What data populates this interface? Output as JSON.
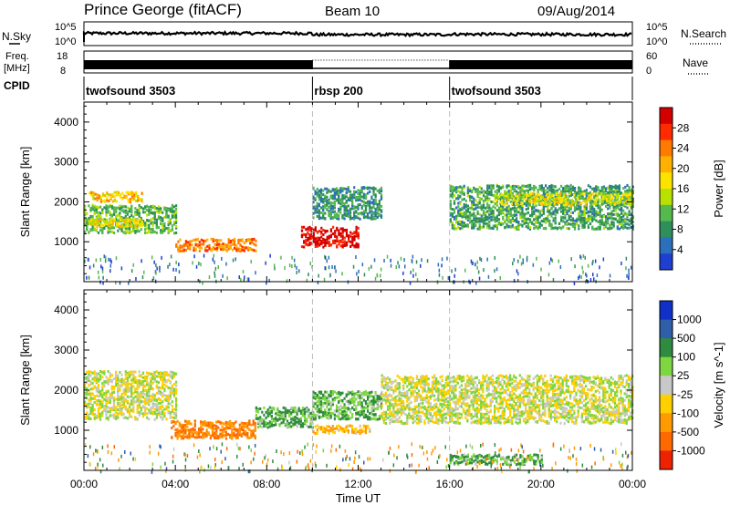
{
  "header": {
    "station": "Prince George (fitACF)",
    "beam": "Beam 10",
    "date": "09/Aug/2014"
  },
  "panel_labels": {
    "nsky": "N.Sky",
    "nsearch": "N.Search",
    "freq": "Freq.",
    "freq_unit": "[MHz]",
    "nave": "Nave",
    "cpid": "CPID"
  },
  "top_axes": {
    "nsky_ticks": [
      "10^5",
      "10^0"
    ],
    "nsearch_ticks": [
      "10^5",
      "10^0"
    ],
    "freq_ticks": [
      "18",
      "8"
    ],
    "nave_ticks": [
      "60",
      "0"
    ]
  },
  "cpid_segments": [
    {
      "label": "twofsound 3503",
      "start_hour": 0,
      "end_hour": 10
    },
    {
      "label": "rbsp 200",
      "start_hour": 10,
      "end_hour": 16
    },
    {
      "label": "twofsound 3503",
      "start_hour": 16,
      "end_hour": 24
    }
  ],
  "power_colorbar": {
    "label": "Power [dB]",
    "ticks": [
      "28",
      "24",
      "20",
      "16",
      "12",
      "8",
      "4"
    ],
    "colors": [
      "#d40000",
      "#ff2a00",
      "#ff7a00",
      "#ffb000",
      "#ffe300",
      "#b8e000",
      "#56b94e",
      "#2f8f5a",
      "#2c6fbd",
      "#1e3fd0"
    ]
  },
  "velocity_colorbar": {
    "label": "Velocity [m s^-1]",
    "ticks": [
      "1000",
      "500",
      "100",
      "25",
      "-25",
      "-100",
      "-500",
      "-1000"
    ],
    "colors": [
      "#1030c8",
      "#2f5fa8",
      "#2e8b3f",
      "#7ed640",
      "#c8c8c8",
      "#ffd000",
      "#ff9a00",
      "#ff6a00",
      "#ee2200"
    ]
  },
  "chart_data": [
    {
      "type": "heatmap",
      "name": "Power",
      "xlabel": "",
      "ylabel": "Slant Range [km]",
      "xlim": [
        0,
        24
      ],
      "ylim": [
        0,
        4500
      ],
      "yticks": [
        1000,
        2000,
        3000,
        4000
      ],
      "zlabel": "Power [dB]",
      "zlim": [
        0,
        30
      ],
      "bands": [
        {
          "t_start": 0,
          "t_end": 4,
          "range_center": 1600,
          "range_width": 700,
          "value": 10
        },
        {
          "t_start": 0.2,
          "t_end": 2.5,
          "range_center": 2150,
          "range_width": 250,
          "value": 18
        },
        {
          "t_start": 0.2,
          "t_end": 2.5,
          "range_center": 1500,
          "range_width": 200,
          "value": 16
        },
        {
          "t_start": 4,
          "t_end": 7.5,
          "range_center": 950,
          "range_width": 300,
          "value": 22
        },
        {
          "t_start": 9.5,
          "t_end": 12,
          "range_center": 1150,
          "range_width": 500,
          "value": 28
        },
        {
          "t_start": 10,
          "t_end": 13,
          "range_center": 2000,
          "range_width": 800,
          "value": 8
        },
        {
          "t_start": 16,
          "t_end": 24,
          "range_center": 1900,
          "range_width": 1100,
          "value": 9
        },
        {
          "t_start": 18,
          "t_end": 24,
          "range_center": 2100,
          "range_width": 300,
          "value": 15
        }
      ]
    },
    {
      "type": "heatmap",
      "name": "Velocity",
      "xlabel": "Time UT",
      "ylabel": "Slant Range [km]",
      "xlim": [
        0,
        24
      ],
      "ylim": [
        0,
        4500
      ],
      "xticks": [
        "00:00",
        "04:00",
        "08:00",
        "12:00",
        "16:00",
        "20:00",
        "00:00"
      ],
      "yticks": [
        1000,
        2000,
        3000,
        4000
      ],
      "zlabel": "Velocity [m s^-1]",
      "zlim": [
        -1000,
        1000
      ],
      "bands": [
        {
          "t_start": 0,
          "t_end": 4,
          "range_center": 1900,
          "range_width": 1200,
          "value": 0
        },
        {
          "t_start": 3.8,
          "t_end": 7.5,
          "range_center": 1050,
          "range_width": 450,
          "value": -500
        },
        {
          "t_start": 7.5,
          "t_end": 10,
          "range_center": 1350,
          "range_width": 500,
          "value": 100
        },
        {
          "t_start": 10,
          "t_end": 13,
          "range_center": 1650,
          "range_width": 700,
          "value": 100
        },
        {
          "t_start": 10,
          "t_end": 12.5,
          "range_center": 1050,
          "range_width": 200,
          "value": -100
        },
        {
          "t_start": 13,
          "t_end": 24,
          "range_center": 1800,
          "range_width": 1200,
          "value": 0
        },
        {
          "t_start": 16,
          "t_end": 20,
          "range_center": 300,
          "range_width": 250,
          "value": 100
        }
      ]
    }
  ]
}
